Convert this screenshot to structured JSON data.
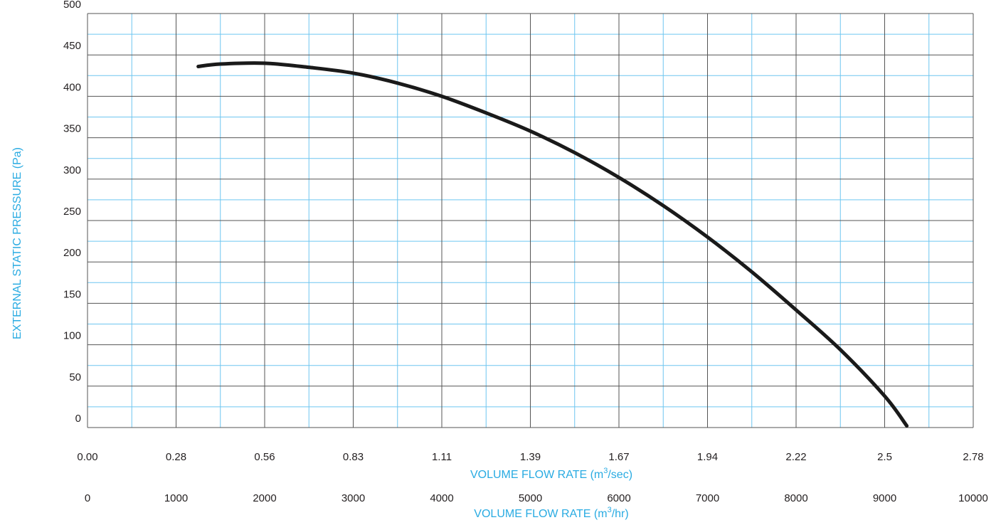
{
  "chart_data": {
    "type": "line",
    "title": "",
    "ylabel": "EXTERNAL STATIC PRESSURE (Pa)",
    "xlabel_primary": {
      "prefix": "VOLUME FLOW RATE (m",
      "sup": "3",
      "suffix": "/sec)"
    },
    "xlabel_secondary": {
      "prefix": "VOLUME FLOW RATE (m",
      "sup": "3",
      "suffix": "/hr)"
    },
    "ylim": [
      0,
      500
    ],
    "xlim_m3hr": [
      0,
      10000
    ],
    "y_ticks": [
      "0",
      "50",
      "100",
      "150",
      "200",
      "250",
      "300",
      "350",
      "400",
      "450",
      "500"
    ],
    "x_ticks_m3sec": [
      "0.00",
      "0.28",
      "0.56",
      "0.83",
      "1.11",
      "1.39",
      "1.67",
      "1.94",
      "2.22",
      "2.5",
      "2.78"
    ],
    "x_ticks_m3hr": [
      "0",
      "1000",
      "2000",
      "3000",
      "4000",
      "5000",
      "6000",
      "7000",
      "8000",
      "9000",
      "10000"
    ],
    "grid": true,
    "series": [
      {
        "x": [
          1250,
          1500,
          2000,
          2500,
          3000,
          3500,
          4000,
          4500,
          5000,
          5500,
          6000,
          6500,
          7000,
          7500,
          8000,
          8500,
          9000,
          9250
        ],
        "y": [
          436,
          439,
          440,
          435,
          428,
          416,
          400,
          380,
          358,
          332,
          302,
          268,
          230,
          188,
          142,
          94,
          38,
          2
        ]
      }
    ],
    "colors": {
      "curve": "#1a1a1a",
      "major_grid": "#555555",
      "minor_grid": "#6ec6f0",
      "axis_title": "#29abe2",
      "tick_text": "#231f20"
    }
  }
}
